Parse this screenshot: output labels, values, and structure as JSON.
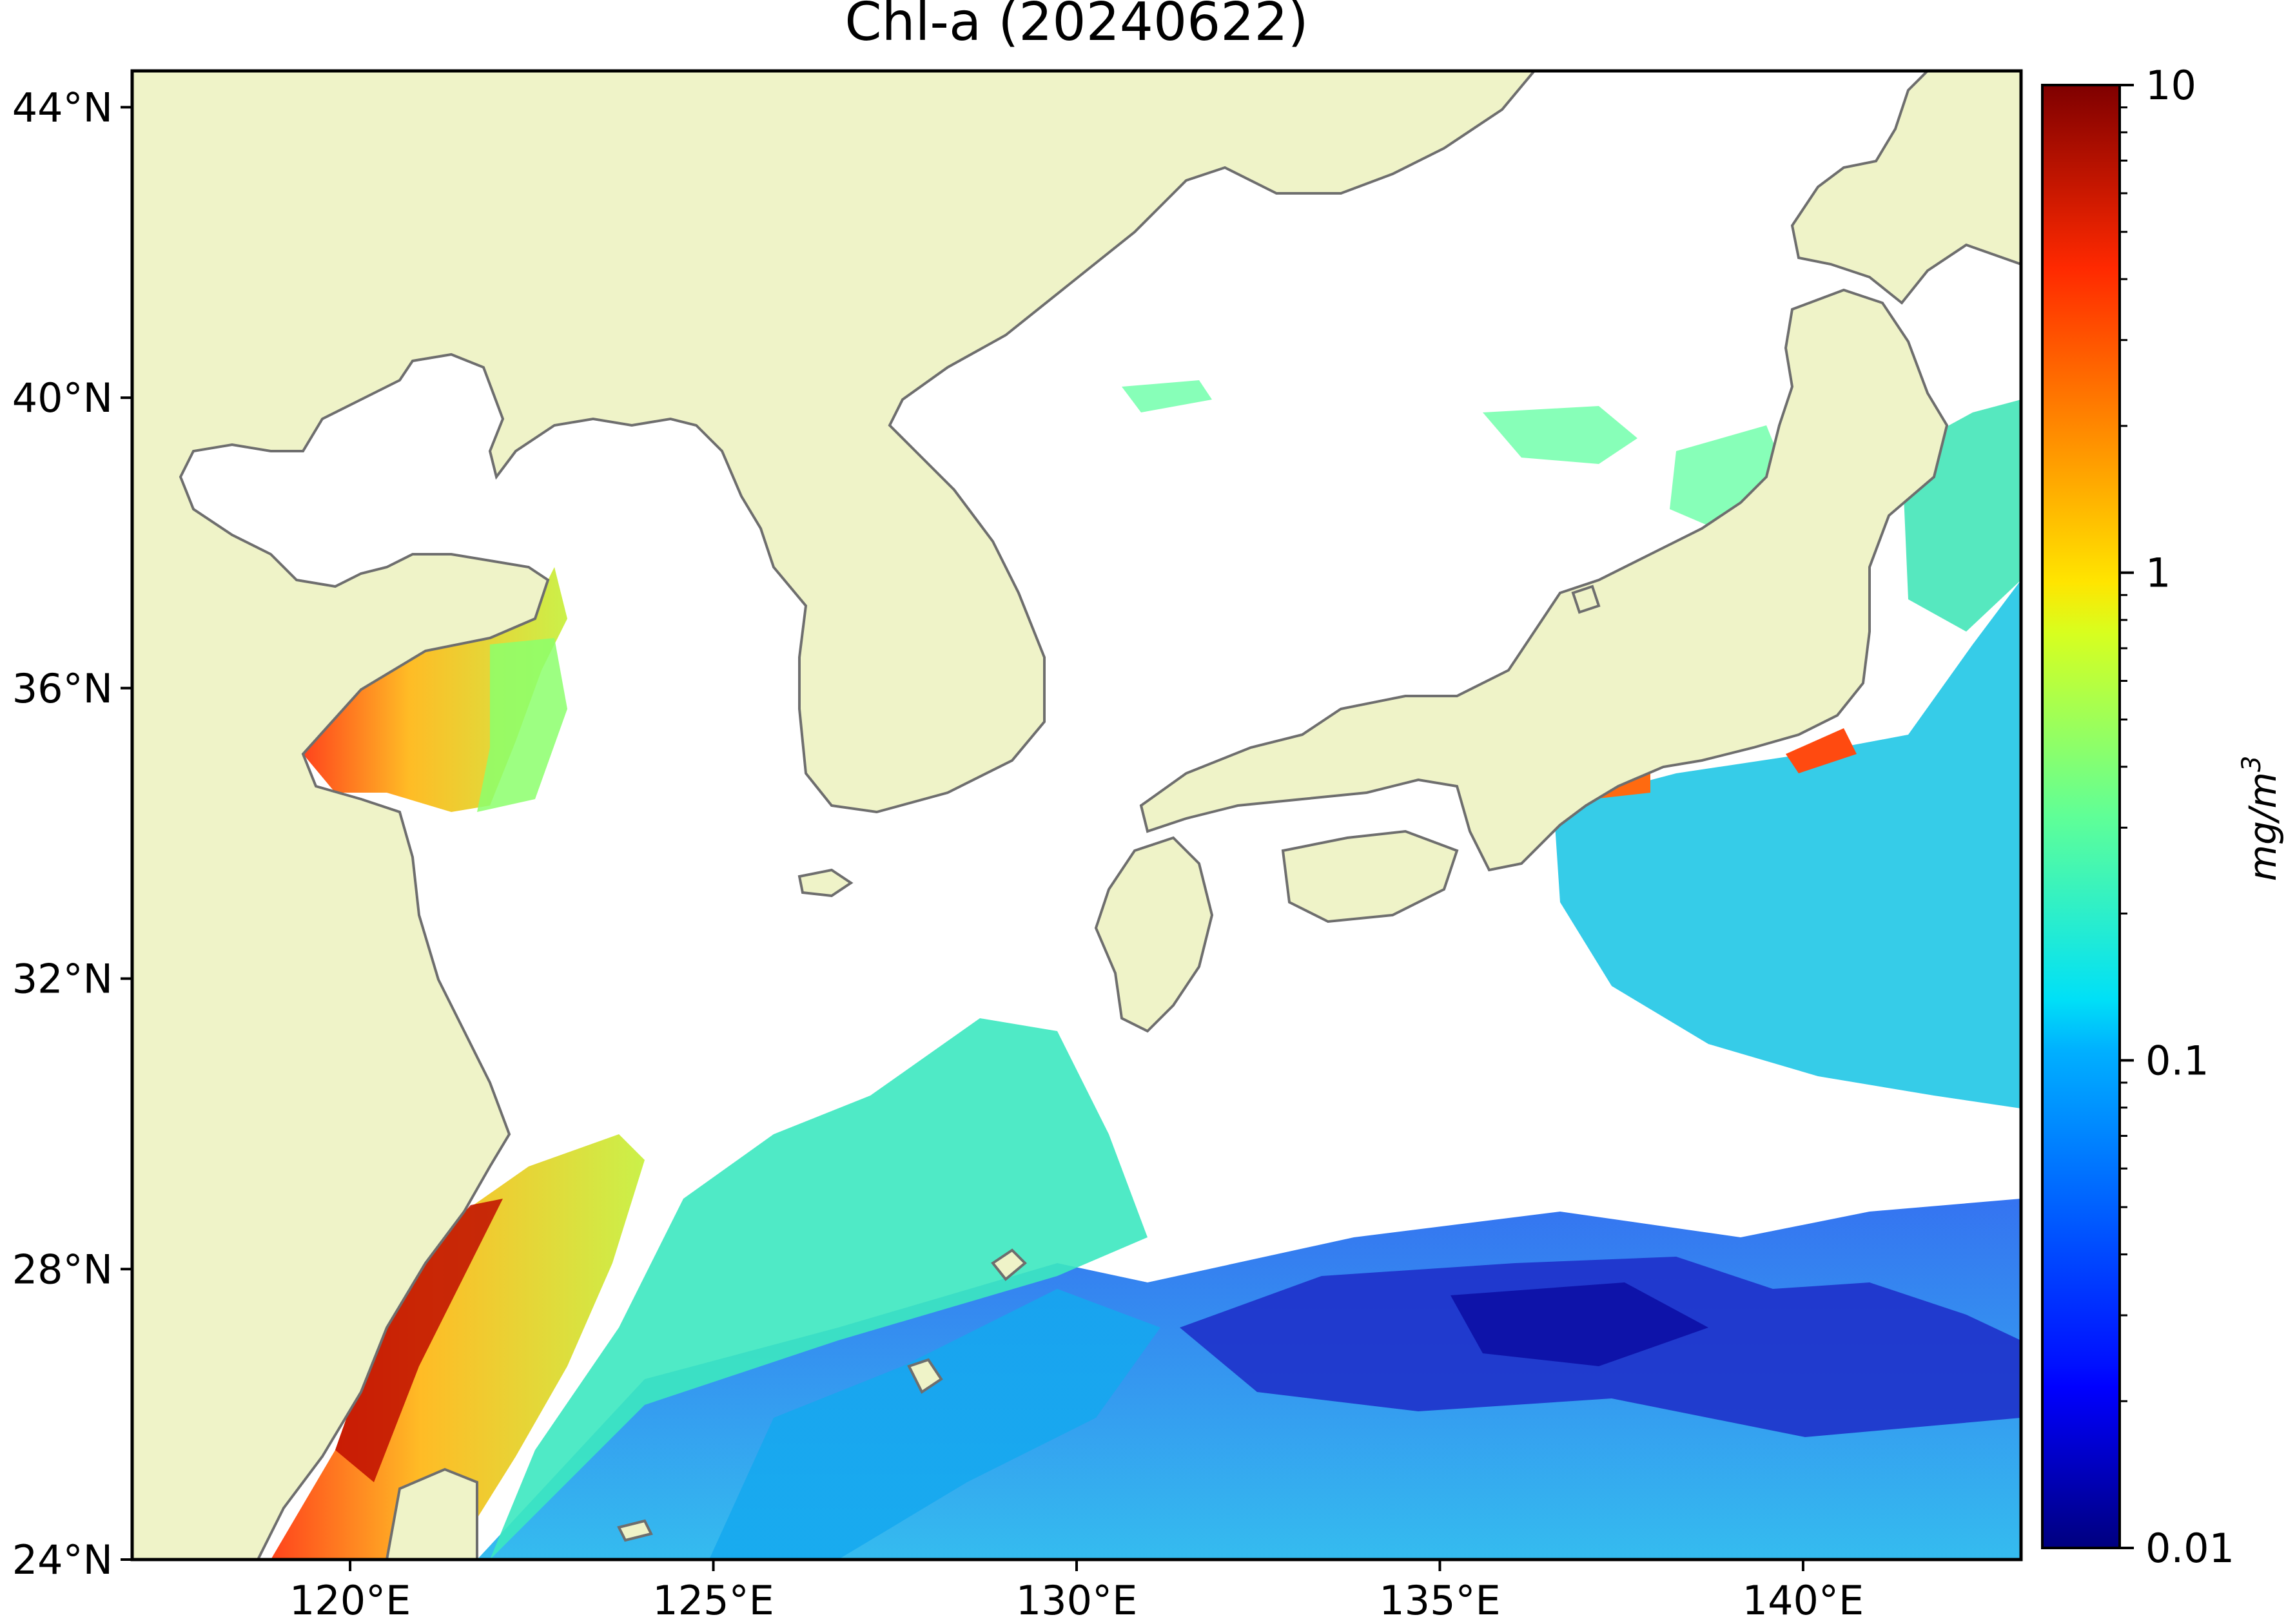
{
  "title": "Chl-a (20240622)",
  "map": {
    "projection": "equirectangular",
    "lon_range": [
      117,
      143
    ],
    "lat_range": [
      24,
      44.5
    ],
    "x_ticks": [
      120,
      125,
      130,
      135,
      140
    ],
    "x_tick_labels": [
      "120°E",
      "125°E",
      "130°E",
      "135°E",
      "140°E"
    ],
    "y_ticks": [
      24,
      28,
      32,
      36,
      40,
      44
    ],
    "y_tick_labels": [
      "24°N",
      "28°N",
      "32°N",
      "36°N",
      "40°N",
      "44°N"
    ],
    "land_color": "#eff3c8",
    "coast_color": "#6e6e6e",
    "no_data_color": "#ffffff"
  },
  "colorbar": {
    "colormap": "jet",
    "scale": "log",
    "range": [
      0.01,
      10
    ],
    "ticks": [
      0.01,
      0.1,
      1,
      10
    ],
    "tick_labels": [
      "0.01",
      "0.1",
      "1",
      "10"
    ],
    "unit_label": "mg/m",
    "unit_superscript": "3"
  }
}
